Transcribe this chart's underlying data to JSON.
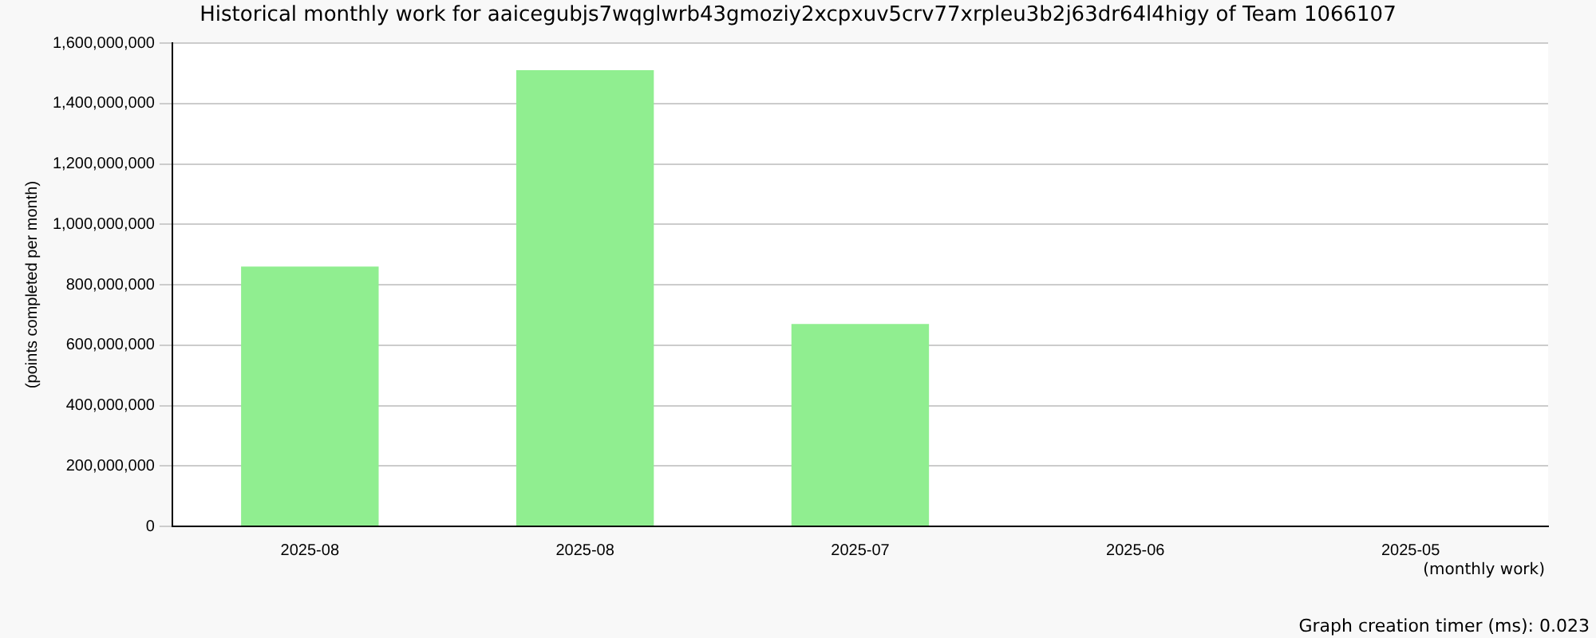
{
  "chart_data": {
    "type": "bar",
    "title": "Historical monthly work for aaicegubjs7wqglwrb43gmoziy2xcpxuv5crv77xrpleu3b2j63dr64l4higy of Team 1066107",
    "xlabel": "(monthly work)",
    "ylabel": "(points completed per month)",
    "categories": [
      "2025-08",
      "2025-08",
      "2025-07",
      "2025-06",
      "2025-05"
    ],
    "values": [
      860000000,
      1510000000,
      670000000,
      0,
      0
    ],
    "color": "#90ee90",
    "ylim": [
      0,
      1600000000
    ],
    "yticks": [
      0,
      {
        "value": 200000000,
        "label": "200,000,000"
      },
      {
        "value": 400000000,
        "label": "400,000,000"
      },
      {
        "value": 600000000,
        "label": "600,000,000"
      },
      {
        "value": 800000000,
        "label": "800,000,000"
      },
      {
        "value": 1000000000,
        "label": "1,000,000,000"
      },
      {
        "value": 1200000000,
        "label": "1,200,000,000"
      },
      {
        "value": 1400000000,
        "label": "1,400,000,000"
      },
      {
        "value": 1600000000,
        "label": "1,600,000,000"
      }
    ],
    "grid": "y",
    "legend": false,
    "annotations": [
      "Graph creation timer (ms): 0.023"
    ]
  }
}
